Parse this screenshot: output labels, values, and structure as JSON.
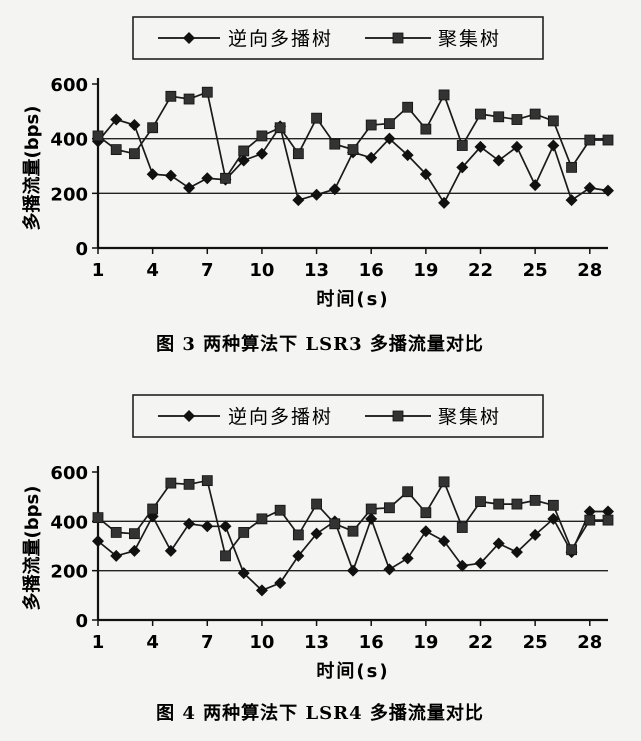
{
  "chart_data": [
    {
      "type": "line",
      "caption": "图 3  两种算法下 LSR3 多播流量对比",
      "xlabel": "时间(s)",
      "ylabel": "多播流量(bps)",
      "xticks": [
        1,
        4,
        7,
        10,
        13,
        16,
        19,
        22,
        25,
        28
      ],
      "yticks": [
        0,
        200,
        400,
        600
      ],
      "xlim": [
        1,
        29
      ],
      "ylim": [
        0,
        600
      ],
      "grid_y": [
        200,
        400
      ],
      "legend_position": "top",
      "series": [
        {
          "name": "逆向多播树",
          "marker": "diamond",
          "x": [
            1,
            2,
            3,
            4,
            5,
            6,
            7,
            8,
            9,
            10,
            11,
            12,
            13,
            14,
            15,
            16,
            17,
            18,
            19,
            20,
            21,
            22,
            23,
            24,
            25,
            26,
            27,
            28,
            29
          ],
          "values": [
            390,
            470,
            450,
            270,
            265,
            220,
            255,
            250,
            320,
            345,
            445,
            175,
            195,
            215,
            350,
            330,
            400,
            340,
            270,
            165,
            295,
            370,
            320,
            370,
            230,
            375,
            175,
            220,
            210
          ]
        },
        {
          "name": "聚集树",
          "marker": "square",
          "x": [
            1,
            2,
            3,
            4,
            5,
            6,
            7,
            8,
            9,
            10,
            11,
            12,
            13,
            14,
            15,
            16,
            17,
            18,
            19,
            20,
            21,
            22,
            23,
            24,
            25,
            26,
            27,
            28,
            29
          ],
          "values": [
            410,
            360,
            345,
            440,
            555,
            545,
            570,
            255,
            355,
            410,
            440,
            345,
            475,
            380,
            360,
            450,
            455,
            515,
            435,
            560,
            375,
            490,
            480,
            470,
            490,
            465,
            295,
            395,
            395
          ]
        }
      ]
    },
    {
      "type": "line",
      "caption": "图 4  两种算法下 LSR4 多播流量对比",
      "xlabel": "时间(s)",
      "ylabel": "多播流量(bps)",
      "xticks": [
        1,
        4,
        7,
        10,
        13,
        16,
        19,
        22,
        25,
        28
      ],
      "yticks": [
        0,
        200,
        400,
        600
      ],
      "xlim": [
        1,
        29
      ],
      "ylim": [
        0,
        600
      ],
      "grid_y": [
        200,
        400
      ],
      "legend_position": "top",
      "series": [
        {
          "name": "逆向多播树",
          "marker": "diamond",
          "x": [
            1,
            2,
            3,
            4,
            5,
            6,
            7,
            8,
            9,
            10,
            11,
            12,
            13,
            14,
            15,
            16,
            17,
            18,
            19,
            20,
            21,
            22,
            23,
            24,
            25,
            26,
            27,
            28,
            29
          ],
          "values": [
            320,
            260,
            280,
            420,
            280,
            390,
            380,
            380,
            190,
            120,
            150,
            260,
            350,
            400,
            200,
            410,
            205,
            250,
            360,
            320,
            220,
            230,
            310,
            275,
            345,
            410,
            275,
            440,
            440
          ]
        },
        {
          "name": "聚集树",
          "marker": "square",
          "x": [
            1,
            2,
            3,
            4,
            5,
            6,
            7,
            8,
            9,
            10,
            11,
            12,
            13,
            14,
            15,
            16,
            17,
            18,
            19,
            20,
            21,
            22,
            23,
            24,
            25,
            26,
            27,
            28,
            29
          ],
          "values": [
            415,
            355,
            350,
            450,
            555,
            550,
            565,
            260,
            355,
            410,
            445,
            345,
            470,
            390,
            360,
            450,
            455,
            520,
            435,
            560,
            375,
            480,
            470,
            470,
            485,
            465,
            285,
            405,
            405
          ]
        }
      ]
    }
  ]
}
